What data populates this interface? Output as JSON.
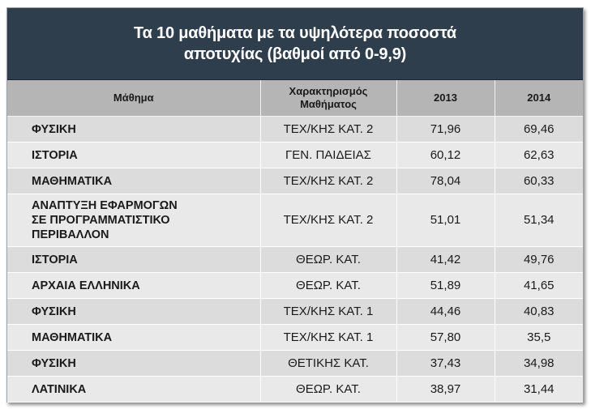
{
  "title": {
    "line1": "Τα 10 μαθήματα με τα υψηλότερα ποσοστά",
    "line2": "αποτυχίας (βαθμοί από 0-9,9)"
  },
  "headers": {
    "subject": "Μάθημα",
    "category_line1": "Χαρακτηρισμός",
    "category_line2": "Μαθήματος",
    "y2013": "2013",
    "y2014": "2014"
  },
  "rows": [
    {
      "subject": [
        "ΦΥΣΙΚΗ"
      ],
      "category": "ΤΕΧ/ΚΗΣ ΚΑΤ. 2",
      "v2013": "71,96",
      "v2014": "69,46"
    },
    {
      "subject": [
        "ΙΣΤΟΡΙΑ"
      ],
      "category": "ΓΕΝ. ΠΑΙΔΕΙΑΣ",
      "v2013": "60,12",
      "v2014": "62,63"
    },
    {
      "subject": [
        "ΜΑΘΗΜΑΤΙΚΑ"
      ],
      "category": "ΤΕΧ/ΚΗΣ ΚΑΤ. 2",
      "v2013": "78,04",
      "v2014": "60,33"
    },
    {
      "subject": [
        "ΑΝΑΠΤΥΞΗ ΕΦΑΡΜΟΓΩΝ",
        "ΣΕ ΠΡΟΓΡΑΜΜΑΤΙΣΤΙΚΟ",
        "ΠΕΡΙΒΑΛΛΟΝ"
      ],
      "category": "ΤΕΧ/ΚΗΣ ΚΑΤ. 2",
      "v2013": "51,01",
      "v2014": "51,34"
    },
    {
      "subject": [
        "ΙΣΤΟΡΙΑ"
      ],
      "category": "ΘΕΩΡ. ΚΑΤ.",
      "v2013": "41,42",
      "v2014": "49,76"
    },
    {
      "subject": [
        "ΑΡΧΑΙΑ ΕΛΛΗΝΙΚΑ"
      ],
      "category": "ΘΕΩΡ. ΚΑΤ.",
      "v2013": "51,89",
      "v2014": "41,65"
    },
    {
      "subject": [
        "ΦΥΣΙΚΗ"
      ],
      "category": "ΤΕΧ/ΚΗΣ ΚΑΤ. 1",
      "v2013": "44,46",
      "v2014": "40,83"
    },
    {
      "subject": [
        "ΜΑΘΗΜΑΤΙΚΑ"
      ],
      "category": "ΤΕΧ/ΚΗΣ ΚΑΤ. 1",
      "v2013": "57,80",
      "v2014": "35,5"
    },
    {
      "subject": [
        "ΦΥΣΙΚΗ"
      ],
      "category": "ΘΕΤΙΚΗΣ ΚΑΤ.",
      "v2013": "37,43",
      "v2014": "34,98"
    },
    {
      "subject": [
        "ΛΑΤΙΝΙΚΑ"
      ],
      "category": "ΘΕΩΡ. ΚΑΤ.",
      "v2013": "38,97",
      "v2014": "31,44"
    }
  ],
  "colors": {
    "title_bg": "#2e3e4c",
    "header_bg": "#b5b5b5",
    "row_odd": "#dcdcdc",
    "row_even": "#e9e9e9"
  },
  "chart_data": {
    "type": "table",
    "columns": [
      "Μάθημα",
      "Χαρακτηρισμός Μαθήματος",
      "2013",
      "2014"
    ],
    "rows": [
      [
        "ΦΥΣΙΚΗ",
        "ΤΕΧ/ΚΗΣ ΚΑΤ. 2",
        71.96,
        69.46
      ],
      [
        "ΙΣΤΟΡΙΑ",
        "ΓΕΝ. ΠΑΙΔΕΙΑΣ",
        60.12,
        62.63
      ],
      [
        "ΜΑΘΗΜΑΤΙΚΑ",
        "ΤΕΧ/ΚΗΣ ΚΑΤ. 2",
        78.04,
        60.33
      ],
      [
        "ΑΝΑΠΤΥΞΗ ΕΦΑΡΜΟΓΩΝ ΣΕ ΠΡΟΓΡΑΜΜΑΤΙΣΤΙΚΟ ΠΕΡΙΒΑΛΛΟΝ",
        "ΤΕΧ/ΚΗΣ ΚΑΤ. 2",
        51.01,
        51.34
      ],
      [
        "ΙΣΤΟΡΙΑ",
        "ΘΕΩΡ. ΚΑΤ.",
        41.42,
        49.76
      ],
      [
        "ΑΡΧΑΙΑ ΕΛΛΗΝΙΚΑ",
        "ΘΕΩΡ. ΚΑΤ.",
        51.89,
        41.65
      ],
      [
        "ΦΥΣΙΚΗ",
        "ΤΕΧ/ΚΗΣ ΚΑΤ. 1",
        44.46,
        40.83
      ],
      [
        "ΜΑΘΗΜΑΤΙΚΑ",
        "ΤΕΧ/ΚΗΣ ΚΑΤ. 1",
        57.8,
        35.5
      ],
      [
        "ΦΥΣΙΚΗ",
        "ΘΕΤΙΚΗΣ ΚΑΤ.",
        37.43,
        34.98
      ],
      [
        "ΛΑΤΙΝΙΚΑ",
        "ΘΕΩΡ. ΚΑΤ.",
        38.97,
        31.44
      ]
    ],
    "title": "Τα 10 μαθήματα με τα υψηλότερα ποσοστά αποτυχίας (βαθμοί από 0-9,9)"
  }
}
